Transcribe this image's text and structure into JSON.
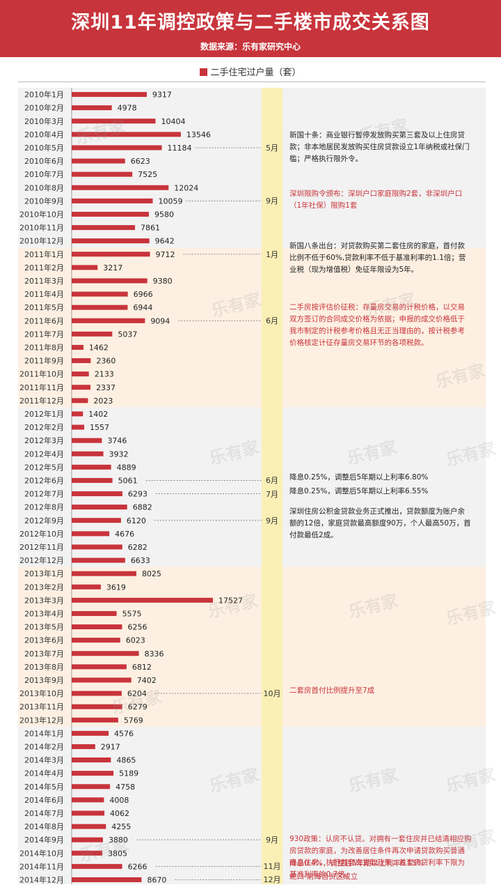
{
  "header": {
    "title": "深圳11年调控政策与二手楼市成交关系图",
    "source": "数据来源：乐有家研究中心"
  },
  "legend": {
    "label": "二手住宅过户量（套）"
  },
  "colors": {
    "bar": "#c8343b",
    "band_gray": "#f2f2f2",
    "band_peach": "#fdf0e2",
    "column": "#faefb5"
  },
  "watermark": "乐有家",
  "chart_data": {
    "type": "bar",
    "orientation": "horizontal",
    "categories": [
      "2010年1月",
      "2010年2月",
      "2010年3月",
      "2010年4月",
      "2010年5月",
      "2010年6月",
      "2010年7月",
      "2010年8月",
      "2010年9月",
      "2010年10月",
      "2010年11月",
      "2010年12月",
      "2011年1月",
      "2011年2月",
      "2011年3月",
      "2011年4月",
      "2011年5月",
      "2011年6月",
      "2011年7月",
      "2011年8月",
      "2011年9月",
      "2011年10月",
      "2011年11月",
      "2011年12月",
      "2012年1月",
      "2012年2月",
      "2012年3月",
      "2012年4月",
      "2012年5月",
      "2012年6月",
      "2012年7月",
      "2012年8月",
      "2012年9月",
      "2012年10月",
      "2012年11月",
      "2012年12月",
      "2013年1月",
      "2013年2月",
      "2013年3月",
      "2013年4月",
      "2013年5月",
      "2013年6月",
      "2013年7月",
      "2013年8月",
      "2013年9月",
      "2013年10月",
      "2013年11月",
      "2013年12月",
      "2014年1月",
      "2014年2月",
      "2014年3月",
      "2014年4月",
      "2014年5月",
      "2014年6月",
      "2014年7月",
      "2014年8月",
      "2014年9月",
      "2014年10月",
      "2014年11月",
      "2014年12月"
    ],
    "values": [
      9317,
      4978,
      10404,
      13546,
      11184,
      6623,
      7525,
      12024,
      10059,
      9580,
      7861,
      9642,
      9712,
      3217,
      9380,
      6966,
      6944,
      9094,
      5037,
      1462,
      2360,
      2133,
      2337,
      2023,
      1402,
      1557,
      3746,
      3932,
      4889,
      5061,
      6293,
      6882,
      6120,
      4676,
      6282,
      6633,
      8025,
      3619,
      17527,
      5575,
      6256,
      6023,
      8336,
      6812,
      7402,
      6204,
      6279,
      5769,
      4576,
      2917,
      4865,
      5189,
      4758,
      4008,
      4062,
      4255,
      3880,
      3805,
      6266,
      8670
    ],
    "series": [
      {
        "name": "二手住宅过户量（套）"
      }
    ],
    "xlim": [
      0,
      18000
    ],
    "annotations": [
      {
        "index": 4,
        "month": "5月",
        "style": "black",
        "text": "新国十条：商业银行暂停发放购买第三套及以上住房贷款；非本地居民发放购买住房贷款设立1年纳税或社保门槛；严格执行限外令。"
      },
      {
        "index": 8,
        "month": "9月",
        "style": "red",
        "text": "深圳限购令颁布：深圳户口家庭限购2套，非深圳户口（1年社保）限购1套"
      },
      {
        "index": 12,
        "month": "1月",
        "style": "black",
        "text": "新国八条出台：对贷款购买第二套住房的家庭，首付款比例不低于60%,贷款利率不低于基准利率的1.1倍；营业税（现为增值税）免征年限设为5年。"
      },
      {
        "index": 17,
        "month": "6月",
        "style": "red",
        "text": "二手房按评估价征税：存量房交易的计税价格，以交易双方签订的合同成交价格为依据；申报的成交价格低于我市制定的计税参考价格且无正当理由的，按计税参考价格核定计征存量房交易环节的各项税款。"
      },
      {
        "index": 29,
        "month": "6月",
        "style": "black",
        "text": "降息0.25%，调整后5年期以上利率6.80%"
      },
      {
        "index": 30,
        "month": "7月",
        "style": "black",
        "text": "降息0.25%，调整后5年期以上利率6.55%"
      },
      {
        "index": 32,
        "month": "9月",
        "style": "black",
        "text": "深圳住房公积金贷款业务正式推出，贷款额度为账户余额的12倍，家庭贷款最高额度90万，个人最高50万，首付款最低2成。"
      },
      {
        "index": 45,
        "month": "10月",
        "style": "red",
        "text": "二套房首付比例提升至7成"
      },
      {
        "index": 56,
        "month": "9月",
        "style": "red",
        "text": "930政策：认房不认贷。对拥有一套住房并已结清相应购房贷款的家庭，为改善居住条件再次申请贷款购买普通商品住房，执行首套房贷款政策；首套房贷利率下限为基准利率的0.7倍。"
      },
      {
        "index": 58,
        "month": "11月",
        "style": "red",
        "text": "降息0.4%，调整后5年期以上利率6.15%"
      },
      {
        "index": 59,
        "month": "12月",
        "style": "red",
        "text": "蛇口-前海自贸区成立"
      }
    ]
  }
}
